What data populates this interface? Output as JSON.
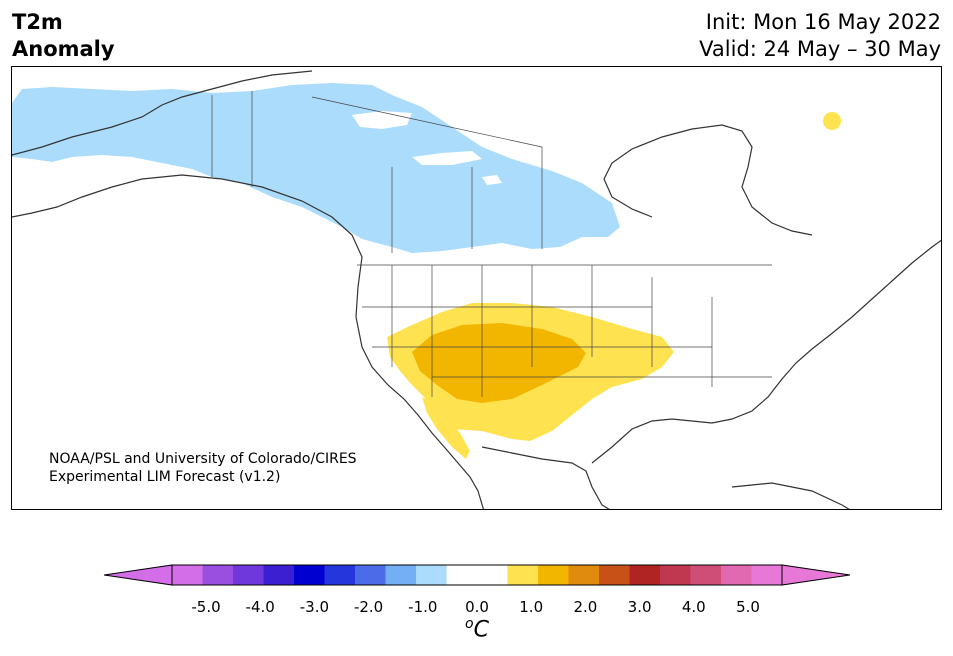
{
  "title": {
    "variable_line1": "T2m",
    "variable_line2": "Anomaly",
    "init": "Init: Mon 16 May 2022",
    "valid": "Valid: 24 May – 30 May"
  },
  "credit": {
    "line1": "NOAA/PSL and University of Colorado/CIRES",
    "line2": "Experimental LIM Forecast (v1.2)"
  },
  "colorbar": {
    "unit_sup": "o",
    "unit": "C",
    "ticks": [
      "-5.0",
      "-4.0",
      "-3.0",
      "-2.0",
      "-1.0",
      "0.0",
      "1.0",
      "2.0",
      "3.0",
      "4.0",
      "5.0"
    ],
    "colors": [
      "#d36ee8",
      "#9b4fe0",
      "#6e38dc",
      "#3b1fd0",
      "#0000d0",
      "#2536dc",
      "#4c6be8",
      "#74aef5",
      "#abdcfb",
      "#ffffff",
      "#ffffff",
      "#ffe24f",
      "#f2b600",
      "#e08a0e",
      "#c85118",
      "#b12424",
      "#c03750",
      "#cf4e78",
      "#e169b2",
      "#e878d8"
    ],
    "extend_low_color": "#d36ee8",
    "extend_high_color": "#e878d8"
  },
  "legend_colors": {
    "cool_anomaly": "#abdcfb",
    "warm_light": "#ffe24f",
    "warm_mid": "#f2b600"
  }
}
